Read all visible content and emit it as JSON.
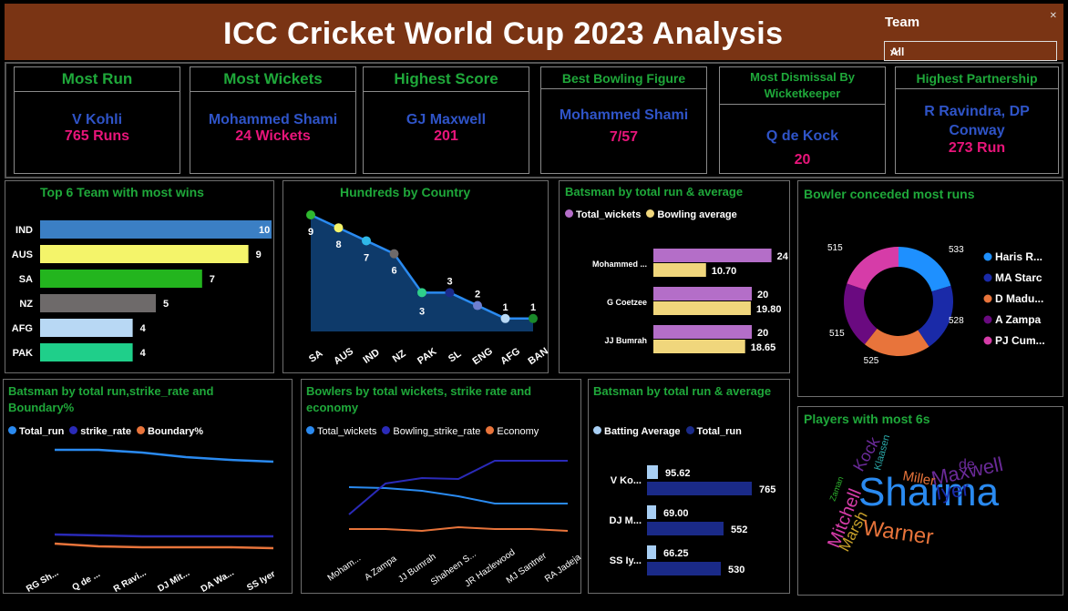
{
  "header": {
    "title": "ICC Cricket World Cup 2023 Analysis"
  },
  "filter": {
    "label": "Team",
    "value": "All"
  },
  "kpis": [
    {
      "title": "Most Run",
      "name": "V Kohli",
      "value": "765 Runs"
    },
    {
      "title": "Most Wickets",
      "name": "Mohammed Shami",
      "value": "24 Wickets"
    },
    {
      "title": "Highest Score",
      "name": "GJ Maxwell",
      "value": "201"
    },
    {
      "title": "Best Bowling Figure",
      "name": "Mohammed Shami",
      "value": "7/57"
    },
    {
      "title": "Most Dismissal By Wicketkeeper",
      "name": "Q de Kock",
      "value": "20"
    },
    {
      "title": "Highest Partnership",
      "name": "R Ravindra, DP Conway",
      "value": "273 Run"
    }
  ],
  "colors": {
    "accent_green": "#1fa83a",
    "name_blue": "#2f54c8",
    "value_pink": "#e8157a",
    "header_brown": "#7a3414"
  },
  "chart_data": [
    {
      "id": "top_wins",
      "type": "bar",
      "title": "Top 6 Team with most wins",
      "categories": [
        "IND",
        "AUS",
        "SA",
        "NZ",
        "AFG",
        "PAK"
      ],
      "values": [
        10,
        9,
        7,
        5,
        4,
        4
      ],
      "colors": [
        "#3b7fc4",
        "#f4f46a",
        "#23b51e",
        "#6e6a6a",
        "#b8d8f4",
        "#1fcf8a"
      ]
    },
    {
      "id": "hundreds",
      "type": "area",
      "title": "Hundreds by Country",
      "categories": [
        "SA",
        "AUS",
        "IND",
        "NZ",
        "PAK",
        "SL",
        "ENG",
        "AFG",
        "BAN"
      ],
      "values": [
        9,
        8,
        7,
        6,
        3,
        3,
        2,
        1,
        1
      ],
      "point_colors": [
        "#2fb82f",
        "#f4f46a",
        "#2fb8e8",
        "#6e6a6a",
        "#2fcf8a",
        "#1a2a8a",
        "#6e7fd0",
        "#b8d8f4",
        "#1a8a2a"
      ]
    },
    {
      "id": "bowler_wickets_avg",
      "type": "bar",
      "title": "Batsman by total run & average",
      "series": [
        {
          "name": "Total_wickets",
          "values": [
            24,
            20,
            20
          ],
          "color": "#b46ec8"
        },
        {
          "name": "Bowling average",
          "values": [
            10.7,
            19.8,
            18.65
          ],
          "color": "#f0d67c"
        }
      ],
      "categories": [
        "Mohammed ...",
        "G Coetzee",
        "JJ Bumrah"
      ],
      "value_labels": [
        [
          "24",
          "10.70"
        ],
        [
          "20",
          "19.80"
        ],
        [
          "20",
          "18.65"
        ]
      ]
    },
    {
      "id": "conceded",
      "type": "pie",
      "title": "Bowler conceded most runs",
      "labels": [
        "Haris R...",
        "MA Starc",
        "D Madu...",
        "A Zampa",
        "PJ Cum..."
      ],
      "values": [
        533,
        528,
        525,
        515,
        515
      ],
      "colors": [
        "#1e90ff",
        "#1a2aa8",
        "#e8743b",
        "#6a0a80",
        "#d63ca8"
      ]
    },
    {
      "id": "bat_run_sr",
      "type": "line",
      "title": "Batsman by total run,strike_rate and Boundary%",
      "categories": [
        "RG Sh...",
        "Q de ...",
        "R Ravi...",
        "DJ Mit...",
        "DA Wa...",
        "SS Iyer"
      ],
      "series": [
        {
          "name": "Total_run",
          "color": "#2a8af0"
        },
        {
          "name": "strike_rate",
          "color": "#2a2ab8"
        },
        {
          "name": "Boundary%",
          "color": "#e8743b"
        }
      ]
    },
    {
      "id": "bowl_wkts_sr",
      "type": "line",
      "title": "Bowlers by total wickets, strike rate and economy",
      "categories": [
        "Moham...",
        "A Zampa",
        "JJ Bumrah",
        "Shaheen S...",
        "JR Hazlewood",
        "MJ Santner",
        "RA Jadeja"
      ],
      "series": [
        {
          "name": "Total_wickets",
          "color": "#2a8af0"
        },
        {
          "name": "Bowling_strike_rate",
          "color": "#2a2ab8"
        },
        {
          "name": "Economy",
          "color": "#e8743b"
        }
      ]
    },
    {
      "id": "bat_avg",
      "type": "bar",
      "title": "Batsman by total run & average",
      "categories": [
        "V Ko...",
        "DJ M...",
        "SS Iy..."
      ],
      "series": [
        {
          "name": "Batting Average",
          "values": [
            95.62,
            69.0,
            66.25
          ],
          "color": "#a8cff4"
        },
        {
          "name": "Total_run",
          "values": [
            765,
            552,
            530
          ],
          "color": "#1a2a88"
        }
      ],
      "value_labels": [
        [
          "95.62",
          "765"
        ],
        [
          "69.00",
          "552"
        ],
        [
          "66.25",
          "530"
        ]
      ]
    }
  ],
  "wordcloud": {
    "title": "Players with most 6s",
    "words": [
      {
        "text": "Sharma",
        "color": "#2a8af0"
      },
      {
        "text": "Maxwell",
        "color": "#6a2a98"
      },
      {
        "text": "Warner",
        "color": "#e8743b"
      },
      {
        "text": "Mitchell",
        "color": "#d63ca8"
      },
      {
        "text": "Iyer",
        "color": "#1a2aa8"
      },
      {
        "text": "Kock",
        "color": "#6a2a98"
      },
      {
        "text": "Marsh",
        "color": "#c8a02a"
      },
      {
        "text": "Miller",
        "color": "#e8743b"
      },
      {
        "text": "de",
        "color": "#6a2a98"
      },
      {
        "text": "Klaasen",
        "color": "#2aa8a8"
      },
      {
        "text": "Zaman",
        "color": "#2fb82f"
      }
    ]
  }
}
